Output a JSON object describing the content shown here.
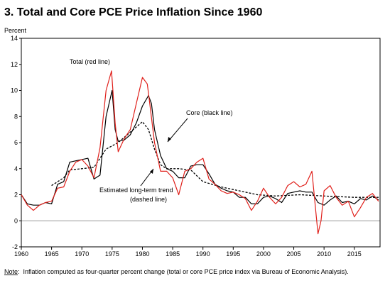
{
  "chart_data": {
    "type": "line",
    "title": "3.  Total and Core PCE Price Inflation Since 1960",
    "y_axis_label": "Percent",
    "xlim": [
      1960,
      2019.25
    ],
    "xticks": [
      1960,
      1965,
      1970,
      1975,
      1980,
      1985,
      1990,
      1995,
      2000,
      2005,
      2010,
      2015
    ],
    "ylim": [
      -2,
      14
    ],
    "yticks": [
      -2,
      0,
      2,
      4,
      6,
      8,
      10,
      12,
      14
    ],
    "annotations": [
      "Total (red line)",
      "Core (black line)",
      "Estimated long-term trend",
      "(dashed line)"
    ],
    "note_label": "Note",
    "note": ":  Inflation computed as four-quarter percent change (total or core PCE price index via Bureau of Economic Analysis).",
    "series": [
      {
        "name": "Total",
        "color": "#e0201b",
        "dashed": false,
        "x": [
          1960,
          1961,
          1962,
          1963,
          1964,
          1965,
          1966,
          1967,
          1968,
          1969,
          1970,
          1971,
          1972,
          1973,
          1974,
          1974.9,
          1975.5,
          1976,
          1977,
          1978,
          1979,
          1980,
          1980.8,
          1981,
          1982,
          1983,
          1984,
          1985,
          1986,
          1987,
          1988,
          1989,
          1990,
          1991,
          1992,
          1993,
          1994,
          1995,
          1996,
          1997,
          1998,
          1999,
          2000,
          2001,
          2002,
          2003,
          2004,
          2005,
          2006,
          2007,
          2008,
          2009,
          2009.5,
          2010,
          2011,
          2012,
          2013,
          2014,
          2015,
          2016,
          2017,
          2018,
          2019
        ],
        "values": [
          2.0,
          1.2,
          0.8,
          1.2,
          1.4,
          1.5,
          2.5,
          2.6,
          3.8,
          4.5,
          4.7,
          4.2,
          3.3,
          5.6,
          10.0,
          11.5,
          7.5,
          5.3,
          6.3,
          7.0,
          9.0,
          11.0,
          10.5,
          9.8,
          6.0,
          3.8,
          3.8,
          3.3,
          2.0,
          3.8,
          4.0,
          4.5,
          4.8,
          3.2,
          2.8,
          2.3,
          2.1,
          2.2,
          2.0,
          1.7,
          0.8,
          1.5,
          2.5,
          1.8,
          1.3,
          1.8,
          2.7,
          3.0,
          2.6,
          2.8,
          3.8,
          -1.0,
          0.0,
          2.3,
          2.7,
          1.8,
          1.2,
          1.5,
          0.3,
          1.0,
          1.8,
          2.1,
          1.5
        ]
      },
      {
        "name": "Core",
        "color": "#000000",
        "dashed": false,
        "x": [
          1960,
          1961,
          1962,
          1963,
          1964,
          1965,
          1966,
          1967,
          1968,
          1969,
          1970,
          1971,
          1972,
          1973,
          1974,
          1975,
          1975.5,
          1976,
          1977,
          1978,
          1979,
          1980,
          1981,
          1981.5,
          1982,
          1983,
          1984,
          1985,
          1986,
          1987,
          1988,
          1989,
          1990,
          1991,
          1992,
          1993,
          1994,
          1995,
          1996,
          1997,
          1998,
          1999,
          2000,
          2001,
          2002,
          2003,
          2004,
          2005,
          2006,
          2007,
          2008,
          2009,
          2010,
          2011,
          2012,
          2013,
          2014,
          2015,
          2016,
          2017,
          2018,
          2019
        ],
        "values": [
          2.0,
          1.3,
          1.2,
          1.2,
          1.4,
          1.3,
          2.8,
          3.0,
          4.5,
          4.6,
          4.7,
          4.8,
          3.2,
          3.5,
          8.0,
          10.0,
          7.0,
          6.1,
          6.2,
          6.6,
          7.5,
          8.8,
          9.6,
          9.0,
          7.0,
          5.0,
          4.0,
          3.8,
          3.3,
          3.3,
          4.2,
          4.3,
          4.3,
          3.6,
          2.8,
          2.5,
          2.3,
          2.2,
          1.8,
          1.8,
          1.3,
          1.3,
          1.8,
          1.9,
          1.7,
          1.4,
          2.1,
          2.2,
          2.3,
          2.2,
          2.2,
          1.4,
          1.2,
          1.6,
          1.9,
          1.4,
          1.5,
          1.3,
          1.7,
          1.6,
          1.9,
          1.6
        ]
      },
      {
        "name": "Estimated long-term trend",
        "color": "#000000",
        "dashed": true,
        "x": [
          1965,
          1967,
          1968,
          1970,
          1972,
          1974,
          1976,
          1978,
          1980,
          1981,
          1982,
          1983,
          1984,
          1986,
          1988,
          1990,
          1993,
          1996,
          1999,
          2002,
          2006,
          2010,
          2015,
          2019
        ],
        "values": [
          2.7,
          3.3,
          3.9,
          4.0,
          4.1,
          5.5,
          6.0,
          6.8,
          7.6,
          7.0,
          5.5,
          4.3,
          4.0,
          4.0,
          3.9,
          3.0,
          2.6,
          2.3,
          2.0,
          1.9,
          2.0,
          1.9,
          1.8,
          1.8
        ]
      }
    ]
  }
}
